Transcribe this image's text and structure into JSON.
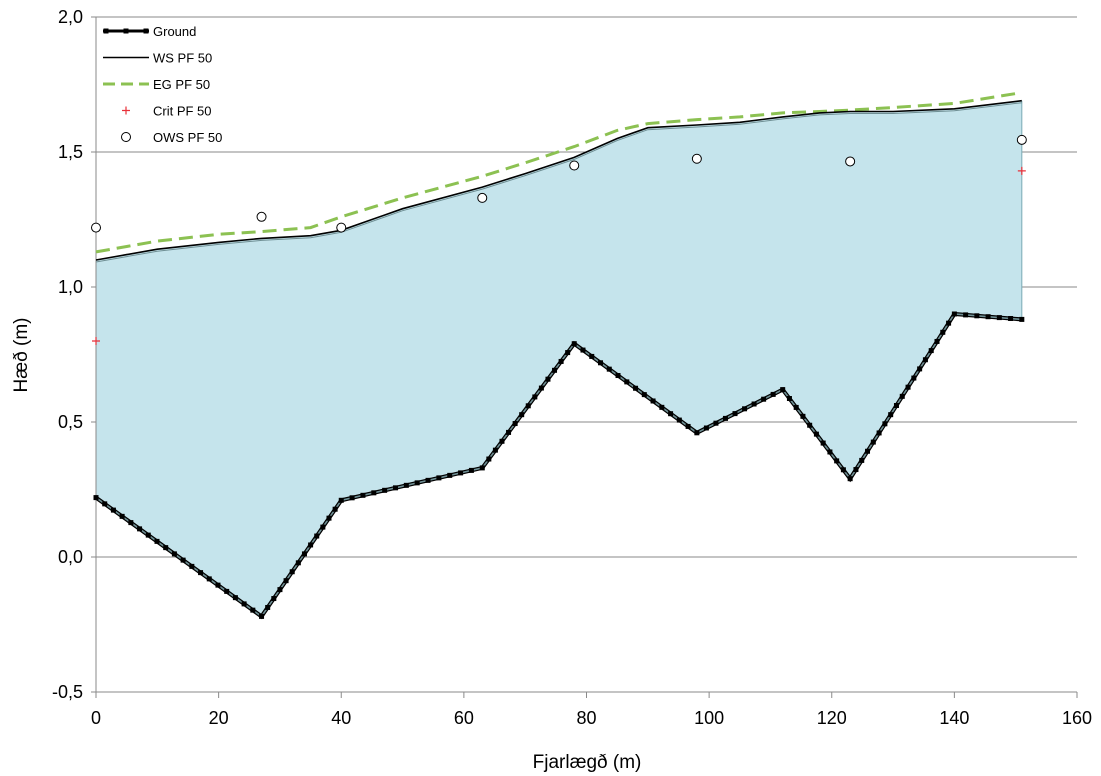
{
  "chart_data": {
    "type": "line",
    "xlabel": "Fjarlægð (m)",
    "ylabel": "Hæð (m)",
    "xlim": [
      0,
      160
    ],
    "ylim": [
      -0.5,
      2.0
    ],
    "xticks": [
      0,
      20,
      40,
      60,
      80,
      100,
      120,
      140,
      160
    ],
    "xtick_labels": [
      "0",
      "20",
      "40",
      "60",
      "80",
      "100",
      "120",
      "140",
      "160"
    ],
    "yticks": [
      -0.5,
      0.0,
      0.5,
      1.0,
      1.5,
      2.0
    ],
    "ytick_labels": [
      "-0,5",
      "0,0",
      "0,5",
      "1,0",
      "1,5",
      "2,0"
    ],
    "grid": "horizontal",
    "legend_position": "top-left",
    "colors": {
      "fill": "#c5e4ec",
      "ground": "#000000",
      "ground_marker": "#6f8f94",
      "ws": "#000000",
      "eg": "#8cc152",
      "crit": "#e8313a",
      "ows": "#000000",
      "grid": "#8a8a8a"
    },
    "series": [
      {
        "name": "Ground",
        "style": "line-with-markers",
        "x": [
          0,
          27,
          40,
          63,
          78,
          98,
          112,
          123,
          140,
          151
        ],
        "y": [
          0.22,
          -0.22,
          0.21,
          0.33,
          0.79,
          0.46,
          0.62,
          0.29,
          0.9,
          0.88
        ]
      },
      {
        "name": "WS  PF 50",
        "style": "line",
        "x": [
          0,
          5,
          10,
          20,
          27,
          35,
          40,
          50,
          63,
          70,
          78,
          85,
          90,
          98,
          105,
          112,
          118,
          123,
          130,
          140,
          151
        ],
        "y": [
          1.1,
          1.12,
          1.14,
          1.165,
          1.18,
          1.19,
          1.21,
          1.29,
          1.37,
          1.42,
          1.48,
          1.55,
          1.59,
          1.6,
          1.61,
          1.63,
          1.645,
          1.65,
          1.65,
          1.66,
          1.69
        ]
      },
      {
        "name": "EG  PF 50",
        "style": "dashed",
        "x": [
          0,
          5,
          10,
          20,
          27,
          35,
          40,
          50,
          63,
          70,
          78,
          85,
          90,
          98,
          105,
          112,
          118,
          123,
          130,
          140,
          151
        ],
        "y": [
          1.13,
          1.15,
          1.17,
          1.195,
          1.205,
          1.22,
          1.26,
          1.33,
          1.41,
          1.46,
          1.52,
          1.58,
          1.605,
          1.62,
          1.63,
          1.645,
          1.65,
          1.655,
          1.665,
          1.68,
          1.72
        ]
      },
      {
        "name": "Crit  PF 50",
        "style": "markers-plus",
        "x": [
          0,
          151
        ],
        "y": [
          0.8,
          1.43
        ]
      },
      {
        "name": "OWS  PF 50",
        "style": "markers-circle",
        "x": [
          0,
          27,
          40,
          63,
          78,
          98,
          123,
          151
        ],
        "y": [
          1.22,
          1.26,
          1.22,
          1.33,
          1.45,
          1.475,
          1.465,
          1.545
        ]
      }
    ]
  }
}
